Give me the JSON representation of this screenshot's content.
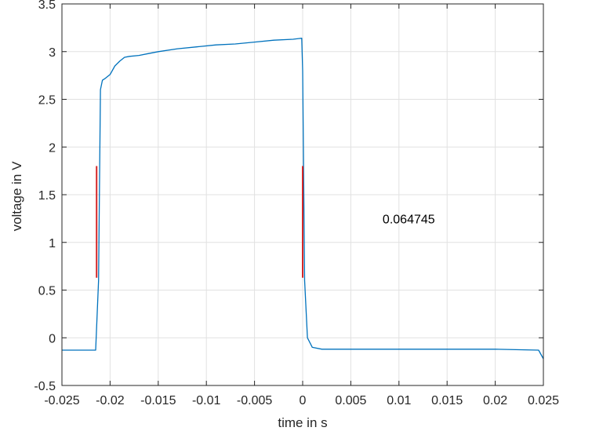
{
  "chart_data": {
    "type": "line",
    "title": "",
    "xlabel": "time in s",
    "ylabel": "voltage in V",
    "xlim": [
      -0.025,
      0.025
    ],
    "ylim": [
      -0.5,
      3.5
    ],
    "grid": true,
    "x_ticks": [
      -0.025,
      -0.02,
      -0.015,
      -0.01,
      -0.005,
      0,
      0.005,
      0.01,
      0.015,
      0.02,
      0.025
    ],
    "x_tick_labels": [
      "-0.025",
      "-0.02",
      "-0.015",
      "-0.01",
      "-0.005",
      "0",
      "0.005",
      "0.01",
      "0.015",
      "0.02",
      "0.025"
    ],
    "y_ticks": [
      -0.5,
      0,
      0.5,
      1,
      1.5,
      2,
      2.5,
      3,
      3.5
    ],
    "y_tick_labels": [
      "-0.5",
      "0",
      "0.5",
      "1",
      "1.5",
      "2",
      "2.5",
      "3",
      "3.5"
    ],
    "series": [
      {
        "color": "#0072bd",
        "x": [
          -0.025,
          -0.0225,
          -0.0215,
          -0.0212,
          -0.021,
          -0.0208,
          -0.0205,
          -0.02,
          -0.0195,
          -0.019,
          -0.0185,
          -0.018,
          -0.017,
          -0.016,
          -0.015,
          -0.013,
          -0.011,
          -0.009,
          -0.007,
          -0.005,
          -0.003,
          -0.001,
          -0.0001,
          0,
          0.0002,
          0.0005,
          0.001,
          0.002,
          0.005,
          0.01,
          0.015,
          0.02,
          0.0245,
          0.025
        ],
        "y": [
          -0.13,
          -0.13,
          -0.13,
          0.6,
          2.6,
          2.7,
          2.72,
          2.76,
          2.85,
          2.9,
          2.94,
          2.95,
          2.96,
          2.98,
          3.0,
          3.03,
          3.05,
          3.07,
          3.08,
          3.1,
          3.12,
          3.13,
          3.14,
          2.8,
          0.6,
          0.0,
          -0.1,
          -0.12,
          -0.12,
          -0.12,
          -0.12,
          -0.12,
          -0.13,
          -0.22
        ]
      }
    ],
    "markers": [
      {
        "color": "#d62728",
        "x": -0.0214,
        "y": [
          0.63,
          1.8
        ]
      },
      {
        "color": "#d62728",
        "x": 0.0,
        "y": [
          0.63,
          1.8
        ]
      }
    ],
    "annotation": {
      "text": "0.064745",
      "x": 0.0083,
      "y": 1.2
    }
  }
}
